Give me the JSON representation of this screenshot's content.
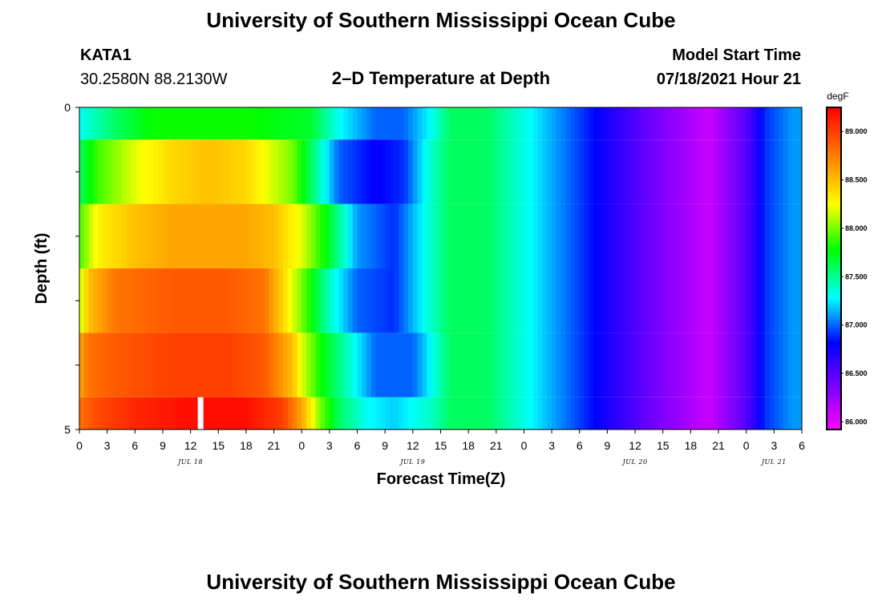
{
  "page": {
    "title": "University of Southern Mississippi Ocean Cube",
    "footer_title": "University of Southern Mississippi Ocean Cube"
  },
  "header": {
    "station": "KATA1",
    "coords": "30.2580N  88.2130W",
    "plot_title": "2–D Temperature at Depth",
    "model_label": "Model Start Time",
    "model_time": "07/18/2021 Hour 21"
  },
  "chart_data": {
    "type": "heatmap",
    "title": "2–D Temperature at Depth",
    "xlabel": "Forecast Time(Z)",
    "ylabel": "Depth (ft)",
    "units": "degF",
    "x_hours_range": [
      0,
      78
    ],
    "y_range": [
      0,
      5
    ],
    "y_tick_labels": [
      "0",
      "5"
    ],
    "x_tick_labels": [
      "0",
      "3",
      "6",
      "9",
      "12",
      "15",
      "18",
      "21",
      "0",
      "3",
      "6",
      "9",
      "12",
      "15",
      "18",
      "21",
      "0",
      "3",
      "6",
      "9",
      "12",
      "15",
      "18",
      "21",
      "0",
      "3",
      "6"
    ],
    "date_labels": [
      {
        "text": "JUL 18",
        "hour": 12
      },
      {
        "text": "JUL 19",
        "hour": 36
      },
      {
        "text": "JUL 20",
        "hour": 60
      },
      {
        "text": "JUL 21",
        "hour": 75
      }
    ],
    "colorbar": {
      "label": "degF",
      "ticks": [
        "89.000",
        "88.500",
        "88.000",
        "87.500",
        "87.000",
        "86.500",
        "86.000"
      ],
      "tick_values": [
        89.0,
        88.5,
        88.0,
        87.5,
        87.0,
        86.5,
        86.0
      ],
      "range": [
        85.92,
        89.25
      ]
    },
    "layers": [
      {
        "depth_top": 0.0,
        "depth_bottom": 0.5,
        "times": [
          0,
          4,
          8,
          12,
          18,
          25,
          28,
          32,
          35,
          38,
          40,
          44,
          50,
          56,
          62,
          68,
          72,
          74,
          77
        ],
        "values": [
          87.3,
          87.6,
          87.8,
          87.8,
          87.8,
          87.7,
          87.3,
          87.0,
          87.0,
          87.3,
          87.6,
          87.6,
          87.2,
          86.8,
          86.4,
          86.1,
          86.5,
          86.9,
          87.1
        ]
      },
      {
        "depth_top": 0.5,
        "depth_bottom": 1.5,
        "times": [
          0,
          2,
          6,
          10,
          14,
          18,
          23,
          25,
          28,
          32,
          35,
          38,
          40,
          44,
          50,
          56,
          62,
          68,
          72,
          74,
          77
        ],
        "values": [
          87.6,
          87.9,
          88.2,
          88.4,
          88.5,
          88.4,
          88.0,
          87.6,
          87.0,
          86.8,
          86.9,
          87.4,
          87.6,
          87.6,
          87.2,
          86.8,
          86.4,
          86.1,
          86.5,
          86.9,
          87.1
        ]
      },
      {
        "depth_top": 1.5,
        "depth_bottom": 2.5,
        "times": [
          0,
          2,
          6,
          10,
          14,
          18,
          21,
          24,
          27,
          30,
          34,
          38,
          40,
          44,
          50,
          56,
          62,
          68,
          72,
          74,
          77
        ],
        "values": [
          87.9,
          88.3,
          88.5,
          88.6,
          88.6,
          88.6,
          88.5,
          88.2,
          87.7,
          87.1,
          86.9,
          87.4,
          87.6,
          87.6,
          87.2,
          86.8,
          86.4,
          86.1,
          86.5,
          86.9,
          87.1
        ]
      },
      {
        "depth_top": 2.5,
        "depth_bottom": 3.5,
        "times": [
          0,
          1,
          4,
          10,
          16,
          20,
          23,
          25,
          27,
          30,
          34,
          38,
          40,
          44,
          50,
          56,
          62,
          68,
          72,
          74,
          77
        ],
        "values": [
          88.1,
          88.5,
          88.8,
          88.9,
          88.9,
          88.8,
          88.2,
          87.8,
          87.4,
          87.0,
          86.9,
          87.4,
          87.6,
          87.6,
          87.2,
          86.8,
          86.4,
          86.1,
          86.5,
          86.9,
          87.1
        ]
      },
      {
        "depth_top": 3.5,
        "depth_bottom": 4.5,
        "times": [
          0,
          1,
          4,
          10,
          16,
          20,
          23,
          24,
          26,
          29,
          32,
          36,
          38,
          40,
          44,
          50,
          56,
          62,
          68,
          72,
          74,
          77
        ],
        "values": [
          88.6,
          88.8,
          88.9,
          89.0,
          89.0,
          88.9,
          88.5,
          88.2,
          87.8,
          87.4,
          87.0,
          87.0,
          87.3,
          87.6,
          87.6,
          87.2,
          86.8,
          86.4,
          86.1,
          86.5,
          86.9,
          87.1
        ]
      },
      {
        "depth_top": 4.5,
        "depth_bottom": 5.0,
        "times": [
          0,
          1,
          3,
          6,
          12,
          18,
          22,
          24,
          26,
          28,
          31,
          34,
          38,
          40,
          44,
          50,
          56,
          62,
          68,
          72,
          74,
          77
        ],
        "values": [
          88.8,
          88.9,
          89.0,
          89.1,
          89.2,
          89.2,
          89.0,
          88.6,
          88.0,
          87.6,
          87.3,
          87.2,
          87.4,
          87.6,
          87.6,
          87.2,
          86.8,
          86.4,
          86.1,
          86.5,
          86.9,
          87.1
        ]
      }
    ],
    "gap_marker": {
      "hour": 13,
      "depth_top": 4.5,
      "depth_bottom": 5.0
    }
  }
}
